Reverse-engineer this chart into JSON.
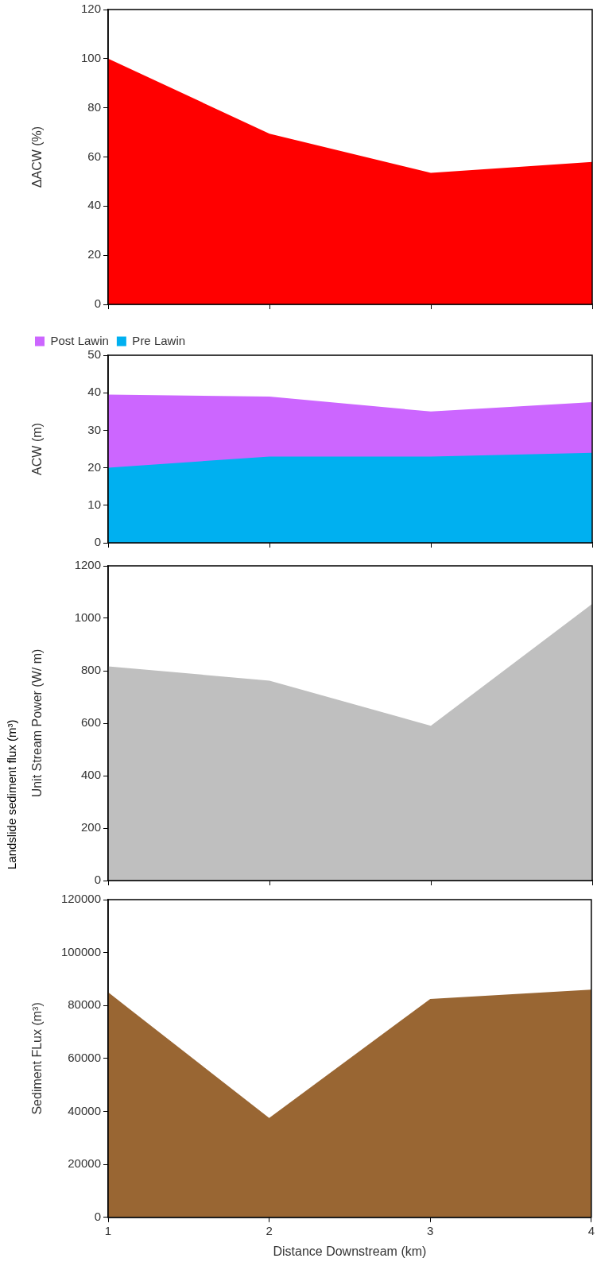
{
  "chart_data": [
    {
      "type": "area",
      "ylabel": "ΔACW (%)",
      "categories": [
        null,
        null,
        null,
        null
      ],
      "tick_labels": "y",
      "series": [
        {
          "color": "#ff0000",
          "values": [
            100,
            69.5,
            53.5,
            58
          ]
        }
      ],
      "ylim": [
        0,
        120
      ],
      "yticks": [
        0,
        20,
        40,
        60,
        80,
        100,
        120
      ],
      "grid": false
    },
    {
      "type": "area",
      "ylabel": "ACW (m)",
      "categories": [
        null,
        null,
        null,
        null
      ],
      "tick_labels": "y",
      "series": [
        {
          "name": "Post Lawin",
          "color": "#cc66ff",
          "values": [
            39.5,
            39,
            35,
            37.5
          ]
        },
        {
          "name": "Pre Lawin",
          "color": "#00b0f0",
          "values": [
            20,
            23,
            23,
            24
          ]
        }
      ],
      "ylim": [
        0,
        50
      ],
      "yticks": [
        0,
        10,
        20,
        30,
        40,
        50
      ],
      "grid": false,
      "legend": "top left"
    },
    {
      "type": "area",
      "ylabel": "Unit Stream Power (W/ m)",
      "categories": [
        null,
        null,
        null,
        null
      ],
      "tick_labels": "y",
      "series": [
        {
          "color": "#bfbfbf",
          "values": [
            817,
            762,
            590,
            1055
          ]
        }
      ],
      "ylim": [
        0,
        1200
      ],
      "yticks": [
        0,
        200,
        400,
        600,
        800,
        1000,
        1200
      ],
      "grid": false
    },
    {
      "type": "area",
      "ylabel": "Sediment FLux (m³)",
      "xlabel": "Distance Downstream (km)",
      "categories": [
        "1",
        "2",
        "3",
        "4"
      ],
      "series": [
        {
          "color": "#996633",
          "values": [
            85000,
            37500,
            82500,
            86000
          ]
        }
      ],
      "ylim": [
        0,
        120000
      ],
      "yticks": [
        0,
        20000,
        40000,
        60000,
        80000,
        100000,
        120000
      ],
      "grid": false,
      "annotations": [
        "Landslide sediment flux (m³)"
      ]
    }
  ]
}
